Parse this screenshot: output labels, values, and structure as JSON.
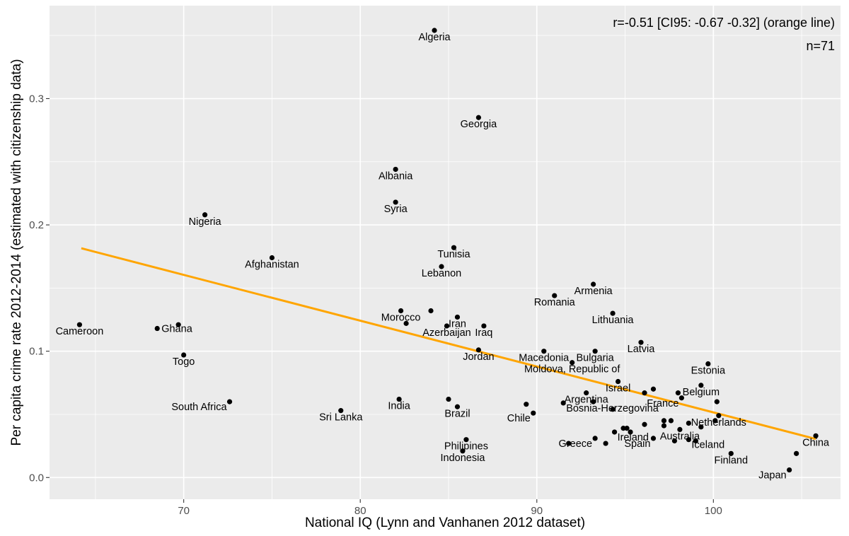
{
  "chart_data": {
    "type": "scatter",
    "title": "",
    "xlabel": "National IQ (Lynn and Vanhanen 2012 dataset)",
    "ylabel": "Per capita crime rate 2012-2014 (estimated with citizenship data)",
    "xlim": [
      62.4,
      107.2
    ],
    "ylim": [
      -0.0172,
      0.3736
    ],
    "xticks": [
      70,
      80,
      90,
      100
    ],
    "yticks": [
      0.0,
      0.1,
      0.2,
      0.3
    ],
    "xtick_labels": [
      "70",
      "80",
      "90",
      "100"
    ],
    "ytick_labels": [
      "0.0",
      "0.1",
      "0.2",
      "0.3"
    ],
    "grid": true,
    "annotations": [
      "r=-0.51 [CI95: -0.67 -0.32] (orange line)",
      "n=71"
    ],
    "line_color": "#FFA500",
    "point_color": "#000000",
    "panel_color": "#EBEBEB",
    "regression_line": {
      "x": [
        64.2,
        105.8
      ],
      "y": [
        0.1815,
        0.0305
      ]
    },
    "points": [
      {
        "x": 84.2,
        "y": 0.354,
        "label": "Algeria",
        "lpos": "below"
      },
      {
        "x": 86.7,
        "y": 0.285,
        "label": "Georgia",
        "lpos": "below"
      },
      {
        "x": 82.0,
        "y": 0.244,
        "label": "Albania",
        "lpos": "below"
      },
      {
        "x": 82.0,
        "y": 0.218,
        "label": "Syria",
        "lpos": "below"
      },
      {
        "x": 71.2,
        "y": 0.208,
        "label": "Nigeria",
        "lpos": "below"
      },
      {
        "x": 75.0,
        "y": 0.174,
        "label": "Afghanistan",
        "lpos": "below"
      },
      {
        "x": 85.3,
        "y": 0.182,
        "label": "Tunisia",
        "lpos": "below"
      },
      {
        "x": 84.6,
        "y": 0.167,
        "label": "Lebanon",
        "lpos": "below"
      },
      {
        "x": 93.2,
        "y": 0.153,
        "label": "Armenia",
        "lpos": "below"
      },
      {
        "x": 91.0,
        "y": 0.144,
        "label": "Romania",
        "lpos": "below"
      },
      {
        "x": 94.3,
        "y": 0.13,
        "label": "Lithuania",
        "lpos": "below"
      },
      {
        "x": 82.3,
        "y": 0.132,
        "label": "Morocco",
        "lpos": "below"
      },
      {
        "x": 84.0,
        "y": 0.132,
        "label": "",
        "lpos": "none"
      },
      {
        "x": 85.5,
        "y": 0.127,
        "label": "Iran",
        "lpos": "below"
      },
      {
        "x": 82.6,
        "y": 0.122,
        "label": "",
        "lpos": "none"
      },
      {
        "x": 84.9,
        "y": 0.12,
        "label": "Azerbaijan",
        "lpos": "below"
      },
      {
        "x": 87.0,
        "y": 0.12,
        "label": "Iraq",
        "lpos": "below"
      },
      {
        "x": 64.1,
        "y": 0.121,
        "label": "Cameroon",
        "lpos": "below"
      },
      {
        "x": 69.7,
        "y": 0.121,
        "label": "",
        "lpos": "none"
      },
      {
        "x": 68.5,
        "y": 0.118,
        "label": "Ghana",
        "lpos": "right"
      },
      {
        "x": 95.9,
        "y": 0.107,
        "label": "Latvia",
        "lpos": "below"
      },
      {
        "x": 86.7,
        "y": 0.101,
        "label": "Jordan",
        "lpos": "below"
      },
      {
        "x": 70.0,
        "y": 0.097,
        "label": "Togo",
        "lpos": "below"
      },
      {
        "x": 90.4,
        "y": 0.1,
        "label": "Macedonia",
        "lpos": "below"
      },
      {
        "x": 93.3,
        "y": 0.1,
        "label": "Bulgaria",
        "lpos": "below"
      },
      {
        "x": 92.0,
        "y": 0.091,
        "label": "Moldova, Republic of",
        "lpos": "below"
      },
      {
        "x": 99.7,
        "y": 0.09,
        "label": "Estonia",
        "lpos": "below"
      },
      {
        "x": 94.6,
        "y": 0.076,
        "label": "Israel",
        "lpos": "below"
      },
      {
        "x": 96.6,
        "y": 0.07,
        "label": "",
        "lpos": "none"
      },
      {
        "x": 96.1,
        "y": 0.067,
        "label": "",
        "lpos": "none"
      },
      {
        "x": 99.3,
        "y": 0.073,
        "label": "Belgium",
        "lpos": "below"
      },
      {
        "x": 98.0,
        "y": 0.067,
        "label": "",
        "lpos": "none"
      },
      {
        "x": 98.2,
        "y": 0.063,
        "label": "France",
        "lpos": "below-left"
      },
      {
        "x": 100.2,
        "y": 0.06,
        "label": "",
        "lpos": "none"
      },
      {
        "x": 92.8,
        "y": 0.067,
        "label": "Argentina",
        "lpos": "below"
      },
      {
        "x": 93.2,
        "y": 0.06,
        "label": "",
        "lpos": "none"
      },
      {
        "x": 91.5,
        "y": 0.059,
        "label": "Bosnia-Herzegovina",
        "lpos": "below-right"
      },
      {
        "x": 94.3,
        "y": 0.054,
        "label": "",
        "lpos": "none"
      },
      {
        "x": 89.4,
        "y": 0.058,
        "label": "",
        "lpos": "none"
      },
      {
        "x": 89.8,
        "y": 0.051,
        "label": "Chile",
        "lpos": "below-left"
      },
      {
        "x": 72.6,
        "y": 0.06,
        "label": "South Africa",
        "lpos": "below-left"
      },
      {
        "x": 82.2,
        "y": 0.062,
        "label": "India",
        "lpos": "below"
      },
      {
        "x": 85.0,
        "y": 0.062,
        "label": "",
        "lpos": "none"
      },
      {
        "x": 85.5,
        "y": 0.056,
        "label": "Brazil",
        "lpos": "below"
      },
      {
        "x": 78.9,
        "y": 0.053,
        "label": "Sri Lanka",
        "lpos": "below"
      },
      {
        "x": 96.1,
        "y": 0.042,
        "label": "",
        "lpos": "none"
      },
      {
        "x": 97.2,
        "y": 0.045,
        "label": "",
        "lpos": "none"
      },
      {
        "x": 97.6,
        "y": 0.045,
        "label": "",
        "lpos": "none"
      },
      {
        "x": 98.6,
        "y": 0.043,
        "label": "",
        "lpos": "none"
      },
      {
        "x": 99.3,
        "y": 0.04,
        "label": "",
        "lpos": "none"
      },
      {
        "x": 97.2,
        "y": 0.041,
        "label": "",
        "lpos": "none"
      },
      {
        "x": 100.3,
        "y": 0.049,
        "label": "Netherlands",
        "lpos": "below"
      },
      {
        "x": 100.1,
        "y": 0.045,
        "label": "",
        "lpos": "none"
      },
      {
        "x": 98.1,
        "y": 0.038,
        "label": "Australia",
        "lpos": "below"
      },
      {
        "x": 95.1,
        "y": 0.039,
        "label": "",
        "lpos": "none"
      },
      {
        "x": 94.9,
        "y": 0.039,
        "label": "",
        "lpos": "none"
      },
      {
        "x": 94.4,
        "y": 0.036,
        "label": "Ireland",
        "lpos": "below-right"
      },
      {
        "x": 95.3,
        "y": 0.036,
        "label": "",
        "lpos": "none"
      },
      {
        "x": 96.6,
        "y": 0.031,
        "label": "Spain",
        "lpos": "below-left"
      },
      {
        "x": 97.8,
        "y": 0.029,
        "label": "",
        "lpos": "none"
      },
      {
        "x": 98.6,
        "y": 0.03,
        "label": "Iceland",
        "lpos": "below-right"
      },
      {
        "x": 99.0,
        "y": 0.029,
        "label": "",
        "lpos": "none"
      },
      {
        "x": 93.3,
        "y": 0.031,
        "label": "Greece",
        "lpos": "below-left"
      },
      {
        "x": 91.8,
        "y": 0.027,
        "label": "",
        "lpos": "none"
      },
      {
        "x": 93.9,
        "y": 0.027,
        "label": "",
        "lpos": "none"
      },
      {
        "x": 86.0,
        "y": 0.03,
        "label": "Philipines",
        "lpos": "below"
      },
      {
        "x": 85.8,
        "y": 0.021,
        "label": "Indonesia",
        "lpos": "below"
      },
      {
        "x": 101.0,
        "y": 0.019,
        "label": "Finland",
        "lpos": "below"
      },
      {
        "x": 105.8,
        "y": 0.033,
        "label": "China",
        "lpos": "below"
      },
      {
        "x": 104.7,
        "y": 0.019,
        "label": "",
        "lpos": "none"
      },
      {
        "x": 104.3,
        "y": 0.006,
        "label": "Japan",
        "lpos": "below-left"
      }
    ]
  }
}
